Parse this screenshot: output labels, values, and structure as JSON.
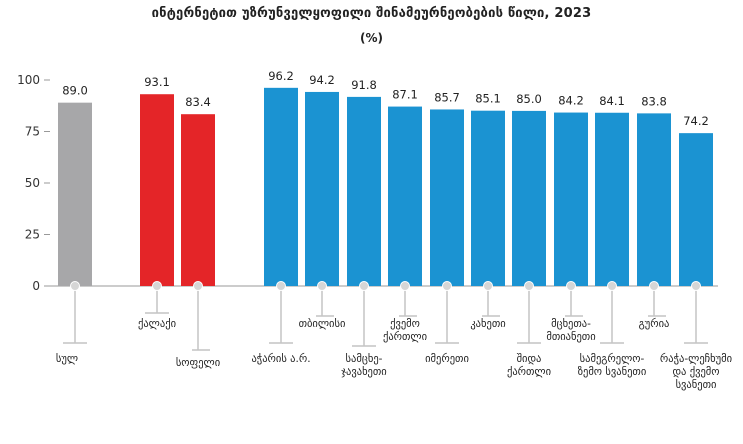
{
  "chart_data": {
    "type": "bar",
    "title": "ინტერნეტით უზრუნველყოფილი შინამეურნეობების წილი, 2023",
    "unit": "(%)",
    "ylim": [
      0,
      100
    ],
    "yticks": [
      0,
      25,
      50,
      75,
      100
    ],
    "grid": false,
    "categories": [
      [
        "სულ"
      ],
      [
        "ქალაქი"
      ],
      [
        "სოფელი"
      ],
      [
        "აჭარის ა.რ."
      ],
      [
        "თბილისი"
      ],
      [
        "სამცხე-",
        "ჯავახეთი"
      ],
      [
        "ქვემო",
        "ქართლი"
      ],
      [
        "იმერეთი"
      ],
      [
        "კახეთი"
      ],
      [
        "შიდა",
        "ქართლი"
      ],
      [
        "მცხეთა-",
        "მთიანეთი"
      ],
      [
        "სამეგრელო-",
        "ზემო სვანეთი"
      ],
      [
        "გურია"
      ],
      [
        "რაჭა-ლეჩხუმი",
        "და ქვემო",
        "სვანეთი"
      ]
    ],
    "values": [
      89.0,
      93.1,
      83.4,
      96.2,
      94.2,
      91.8,
      87.1,
      85.7,
      85.1,
      85.0,
      84.2,
      84.1,
      83.8,
      74.2
    ],
    "value_labels": [
      "89.0",
      "93.1",
      "83.4",
      "96.2",
      "94.2",
      "91.8",
      "87.1",
      "85.7",
      "85.1",
      "85.0",
      "84.2",
      "84.1",
      "83.8",
      "74.2"
    ],
    "colors": [
      "#a7a7a9",
      "#e42528",
      "#e42528",
      "#1b93d2",
      "#1b93d2",
      "#1b93d2",
      "#1b93d2",
      "#1b93d2",
      "#1b93d2",
      "#1b93d2",
      "#1b93d2",
      "#1b93d2",
      "#1b93d2",
      "#1b93d2"
    ]
  }
}
